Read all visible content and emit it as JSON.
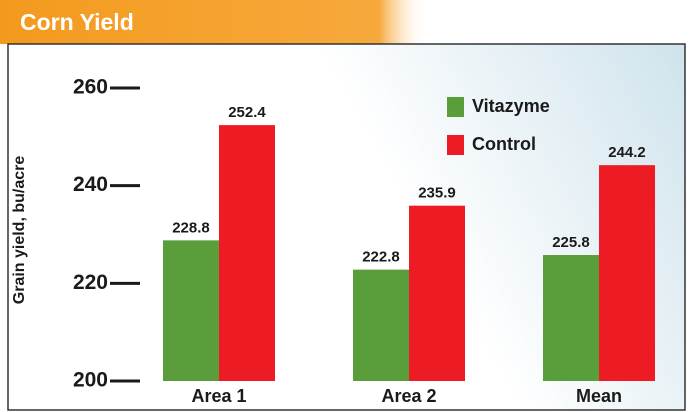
{
  "chart_data": {
    "type": "bar",
    "title": "Corn Yield",
    "y_label": "Grain yield, bu/acre",
    "categories": [
      "Area 1",
      "Area 2",
      "Mean"
    ],
    "series": [
      {
        "name": "Vitazyme",
        "color": "#5a9e3c",
        "values": [
          228.8,
          222.8,
          225.8
        ]
      },
      {
        "name": "Control",
        "color": "#ed1c24",
        "values": [
          252.4,
          235.9,
          244.2
        ]
      }
    ],
    "ylim": [
      200,
      260
    ],
    "yticks": [
      200,
      220,
      240,
      260
    ],
    "legend": "upper right"
  }
}
